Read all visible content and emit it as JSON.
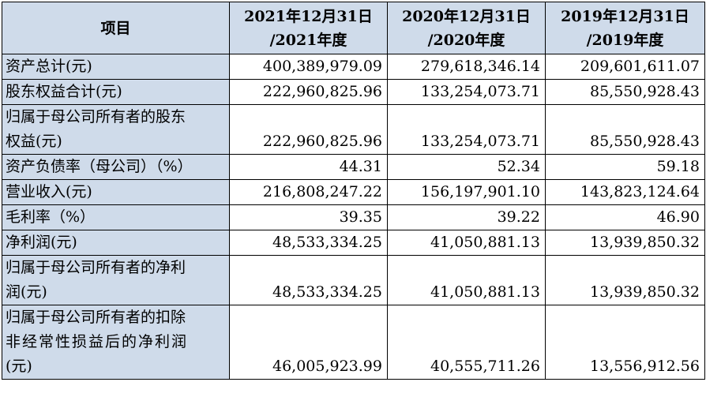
{
  "table": {
    "header": {
      "item": "项目",
      "col1_line1": "2021年12月31日",
      "col1_line2": "/2021年度",
      "col2_line1": "2020年12月31日",
      "col2_line2": "/2020年度",
      "col3_line1": "2019年12月31日",
      "col3_line2": "/2019年度"
    },
    "rows": [
      {
        "label": "资产总计(元)",
        "v2021": "400,389,979.09",
        "v2020": "279,618,346.14",
        "v2019": "209,601,611.07"
      },
      {
        "label": "股东权益合计(元)",
        "v2021": "222,960,825.96",
        "v2020": "133,254,073.71",
        "v2019": "85,550,928.43"
      },
      {
        "label_line1": "归属于母公司所有者的股东",
        "label_line2": "权益(元)",
        "v2021": "222,960,825.96",
        "v2020": "133,254,073.71",
        "v2019": "85,550,928.43"
      },
      {
        "label": "资产负债率（母公司）（%）",
        "v2021": "44.31",
        "v2020": "52.34",
        "v2019": "59.18"
      },
      {
        "label": "营业收入(元)",
        "v2021": "216,808,247.22",
        "v2020": "156,197,901.10",
        "v2019": "143,823,124.64"
      },
      {
        "label": "毛利率（%）",
        "v2021": "39.35",
        "v2020": "39.22",
        "v2019": "46.90"
      },
      {
        "label": "净利润(元)",
        "v2021": "48,533,334.25",
        "v2020": "41,050,881.13",
        "v2019": "13,939,850.32"
      },
      {
        "label_line1": "归属于母公司所有者的净利",
        "label_line2": "润(元)",
        "v2021": "48,533,334.25",
        "v2020": "41,050,881.13",
        "v2019": "13,939,850.32"
      },
      {
        "label_line1": "归属于母公司所有者的扣除",
        "label_line2": "非经常性损益后的净利润",
        "label_line3": "(元)",
        "v2021": "46,005,923.99",
        "v2020": "40,555,711.26",
        "v2019": "13,556,912.56"
      }
    ]
  }
}
